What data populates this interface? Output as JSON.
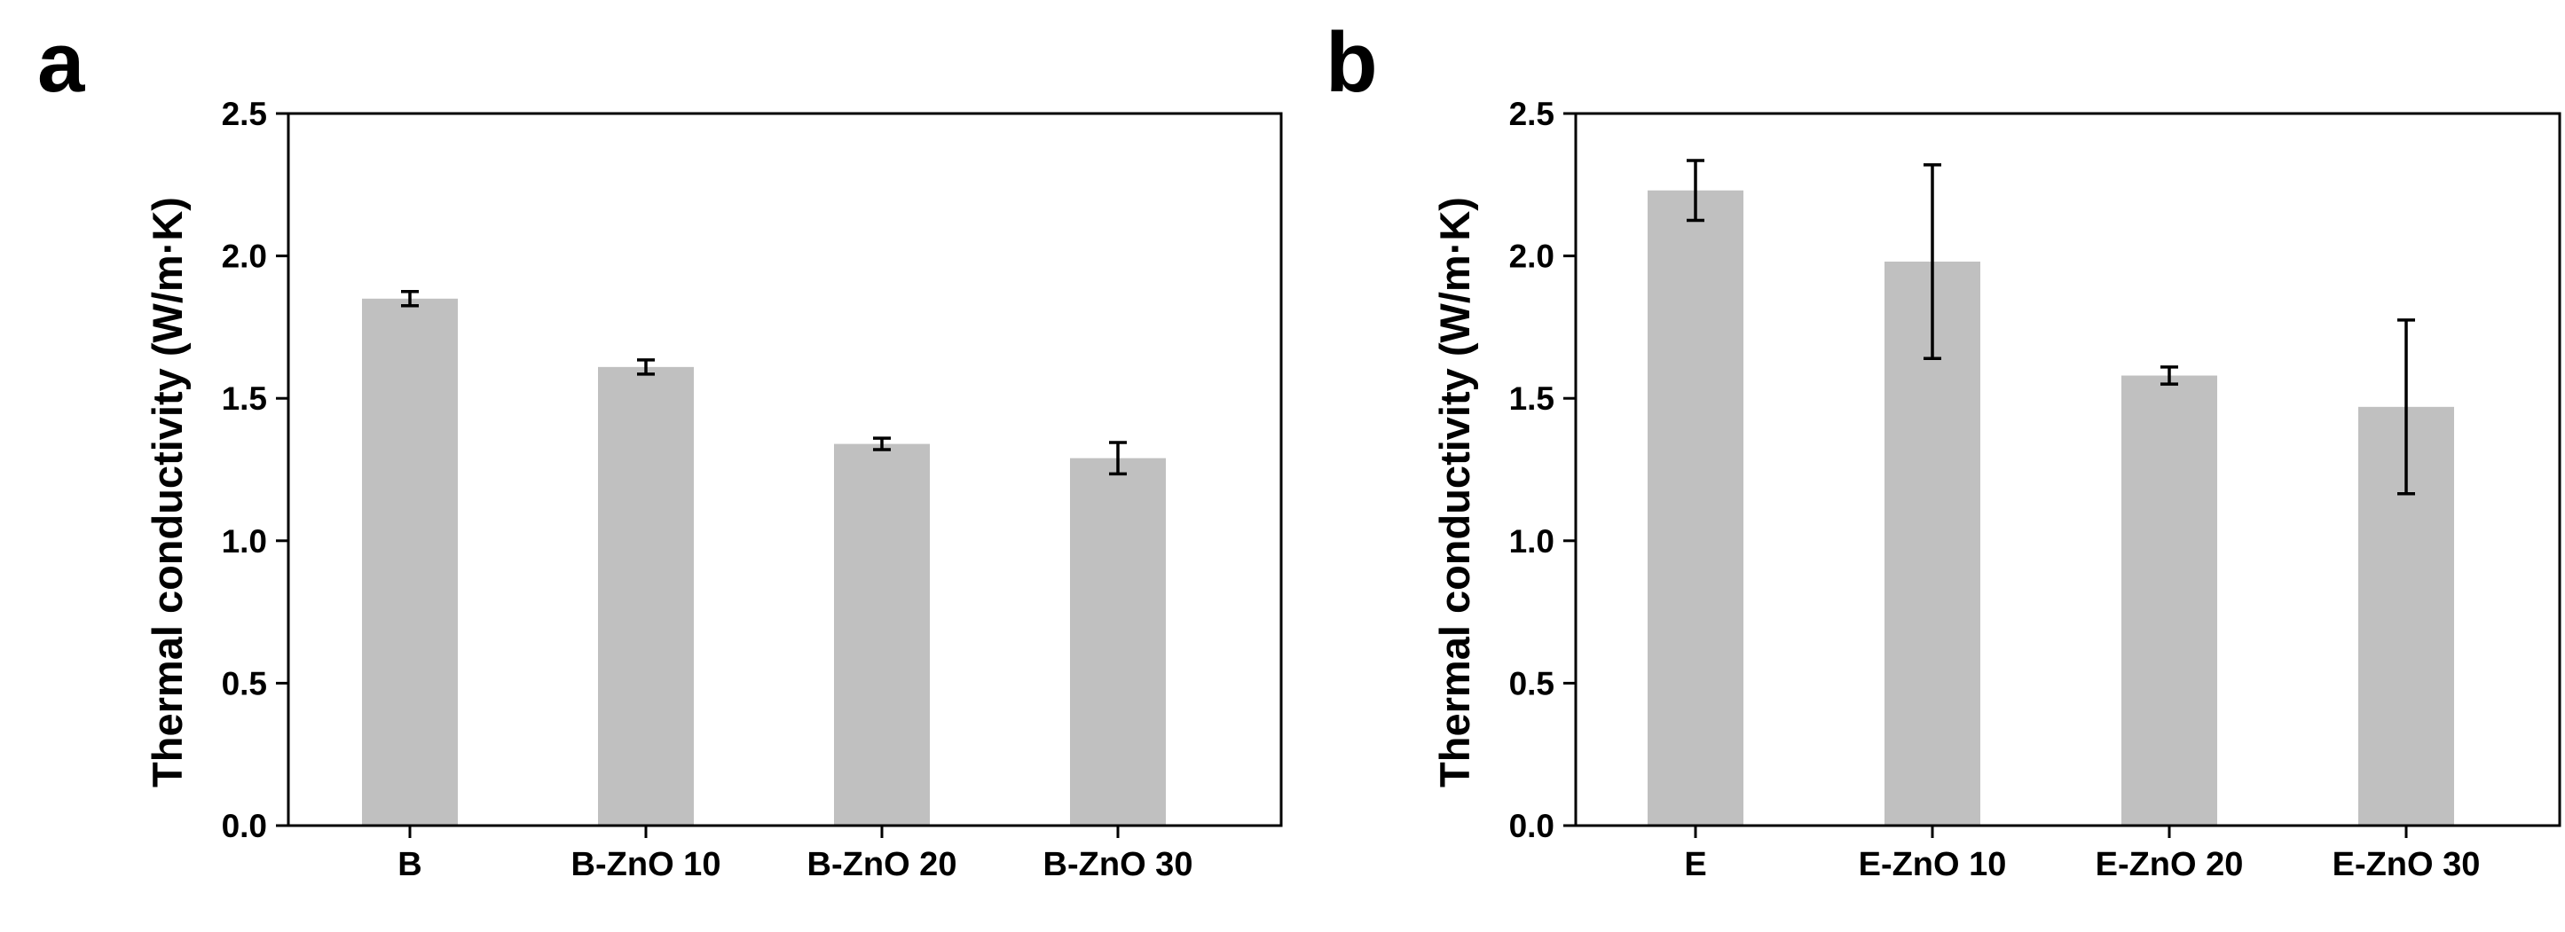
{
  "colors": {
    "bar": "#c0c0c0",
    "axis": "#000000",
    "errorbar": "#000000",
    "background": "#ffffff"
  },
  "chart_data": [
    {
      "type": "bar",
      "panel_label": "a",
      "title": "",
      "xlabel": "",
      "ylabel": "Thermal conductivity (W/m·K)",
      "ylim": [
        0.0,
        2.5
      ],
      "yticks": [
        0.0,
        0.5,
        1.0,
        1.5,
        2.0,
        2.5
      ],
      "ytick_labels": [
        "0.0",
        "0.5",
        "1.0",
        "1.5",
        "2.0",
        "2.5"
      ],
      "categories": [
        "B",
        "B-ZnO 10",
        "B-ZnO 20",
        "B-ZnO 30"
      ],
      "values": [
        1.85,
        1.61,
        1.34,
        1.29
      ],
      "errors": [
        0.025,
        0.025,
        0.02,
        0.055
      ],
      "grid": false
    },
    {
      "type": "bar",
      "panel_label": "b",
      "title": "",
      "xlabel": "",
      "ylabel": "Thermal conductivity (W/m·K)",
      "ylim": [
        0.0,
        2.5
      ],
      "yticks": [
        0.0,
        0.5,
        1.0,
        1.5,
        2.0,
        2.5
      ],
      "ytick_labels": [
        "0.0",
        "0.5",
        "1.0",
        "1.5",
        "2.0",
        "2.5"
      ],
      "categories": [
        "E",
        "E-ZnO 10",
        "E-ZnO 20",
        "E-ZnO 30"
      ],
      "values": [
        2.23,
        1.98,
        1.58,
        1.47
      ],
      "errors": [
        0.105,
        0.34,
        0.03,
        0.305
      ],
      "grid": false
    }
  ]
}
